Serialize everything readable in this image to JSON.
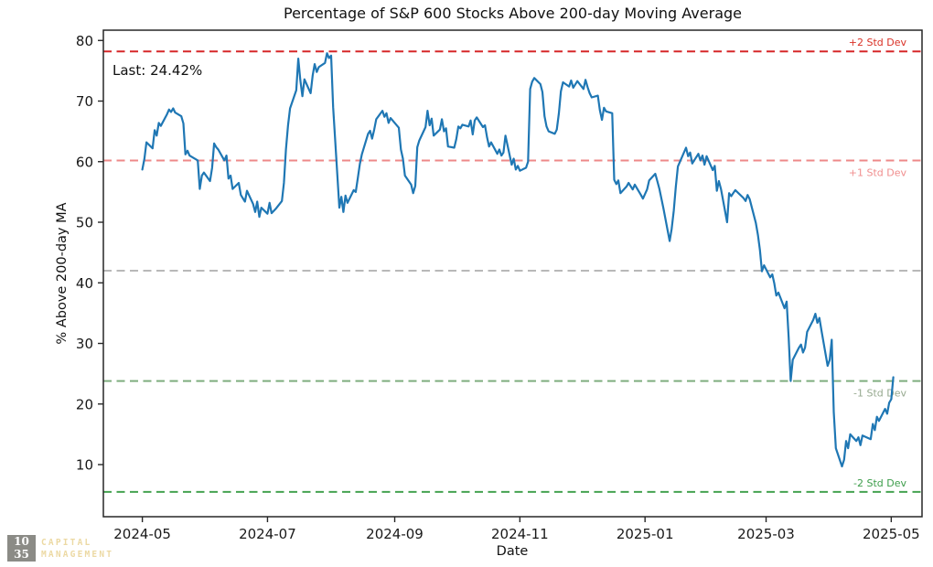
{
  "title": "Percentage of S&P 600 Stocks Above 200-day Moving Average",
  "watermark": {
    "top_number": "10",
    "bottom_number": "35",
    "word1": "CAPITAL",
    "word2": "MANAGEMENT"
  },
  "chart_data": {
    "type": "line",
    "title": "Percentage of S&P 600 Stocks Above 200-day Moving Average",
    "xlabel": "Date",
    "ylabel": "% Above 200-day MA",
    "last_label": "Last: 24.42%",
    "last_value": 24.42,
    "grid": false,
    "legend": "none",
    "line_color": "#1f77b4",
    "axis_color": "#262626",
    "tick_label_color": "#191919",
    "ylim": [
      1.4,
      81.7
    ],
    "xlim_dates": [
      "2024-04-12",
      "2025-05-16"
    ],
    "y_ticks": [
      10,
      20,
      30,
      40,
      50,
      60,
      70,
      80
    ],
    "x_ticks": [
      {
        "label": "2024-05",
        "date": "2024-05-01"
      },
      {
        "label": "2024-07",
        "date": "2024-07-01"
      },
      {
        "label": "2024-09",
        "date": "2024-09-01"
      },
      {
        "label": "2024-11",
        "date": "2024-11-01"
      },
      {
        "label": "2025-01",
        "date": "2025-01-01"
      },
      {
        "label": "2025-03",
        "date": "2025-03-01"
      },
      {
        "label": "2025-05",
        "date": "2025-05-01"
      }
    ],
    "std_lines": [
      {
        "name": "plus-2-std",
        "label": "+2 Std Dev",
        "value": 78.2,
        "color": "#d62728",
        "label_color": "#d93025",
        "label_side": "above"
      },
      {
        "name": "plus-1-std",
        "label": "+1 Std Dev",
        "value": 60.2,
        "color": "#ee8888",
        "label_color": "#f08d8d",
        "label_side": "below"
      },
      {
        "name": "mean",
        "label": "",
        "value": 42.0,
        "color": "#b8b8b8",
        "label_color": "#b8b8b8",
        "label_side": "below"
      },
      {
        "name": "minus-1-std",
        "label": "-1 Std Dev",
        "value": 23.8,
        "color": "#7fae7f",
        "label_color": "#96a98f",
        "label_side": "below"
      },
      {
        "name": "minus-2-std",
        "label": "-2 Std Dev",
        "value": 5.5,
        "color": "#45a250",
        "label_color": "#3c9d4a",
        "label_side": "above"
      }
    ],
    "series": [
      {
        "name": "% of S&P 600 stocks above 200-day MA",
        "points": [
          [
            "2024-05-01",
            58.7
          ],
          [
            "2024-05-02",
            60.5
          ],
          [
            "2024-05-03",
            63.2
          ],
          [
            "2024-05-06",
            62.2
          ],
          [
            "2024-05-07",
            65.2
          ],
          [
            "2024-05-08",
            64.3
          ],
          [
            "2024-05-09",
            66.4
          ],
          [
            "2024-05-10",
            65.9
          ],
          [
            "2024-05-13",
            67.8
          ],
          [
            "2024-05-14",
            68.6
          ],
          [
            "2024-05-15",
            68.2
          ],
          [
            "2024-05-16",
            68.8
          ],
          [
            "2024-05-17",
            68.1
          ],
          [
            "2024-05-20",
            67.5
          ],
          [
            "2024-05-21",
            66.3
          ],
          [
            "2024-05-22",
            61.2
          ],
          [
            "2024-05-23",
            61.8
          ],
          [
            "2024-05-24",
            61.0
          ],
          [
            "2024-05-28",
            60.2
          ],
          [
            "2024-05-29",
            55.5
          ],
          [
            "2024-05-30",
            57.7
          ],
          [
            "2024-05-31",
            58.2
          ],
          [
            "2024-06-03",
            56.8
          ],
          [
            "2024-06-04",
            59.0
          ],
          [
            "2024-06-05",
            63.0
          ],
          [
            "2024-06-06",
            62.4
          ],
          [
            "2024-06-07",
            62.0
          ],
          [
            "2024-06-10",
            60.2
          ],
          [
            "2024-06-11",
            61.0
          ],
          [
            "2024-06-12",
            57.2
          ],
          [
            "2024-06-13",
            57.7
          ],
          [
            "2024-06-14",
            55.5
          ],
          [
            "2024-06-17",
            56.5
          ],
          [
            "2024-06-18",
            54.5
          ],
          [
            "2024-06-20",
            53.4
          ],
          [
            "2024-06-21",
            55.2
          ],
          [
            "2024-06-24",
            53.0
          ],
          [
            "2024-06-25",
            51.7
          ],
          [
            "2024-06-26",
            53.4
          ],
          [
            "2024-06-27",
            50.9
          ],
          [
            "2024-06-28",
            52.4
          ],
          [
            "2024-07-01",
            51.4
          ],
          [
            "2024-07-02",
            53.2
          ],
          [
            "2024-07-03",
            51.5
          ],
          [
            "2024-07-05",
            52.2
          ],
          [
            "2024-07-08",
            53.5
          ],
          [
            "2024-07-09",
            56.5
          ],
          [
            "2024-07-10",
            62.0
          ],
          [
            "2024-07-11",
            66.0
          ],
          [
            "2024-07-12",
            68.8
          ],
          [
            "2024-07-15",
            71.8
          ],
          [
            "2024-07-16",
            77.0
          ],
          [
            "2024-07-17",
            73.5
          ],
          [
            "2024-07-18",
            70.8
          ],
          [
            "2024-07-19",
            73.6
          ],
          [
            "2024-07-22",
            71.3
          ],
          [
            "2024-07-23",
            74.2
          ],
          [
            "2024-07-24",
            76.1
          ],
          [
            "2024-07-25",
            74.8
          ],
          [
            "2024-07-26",
            75.6
          ],
          [
            "2024-07-29",
            76.3
          ],
          [
            "2024-07-30",
            77.9
          ],
          [
            "2024-07-31",
            77.1
          ],
          [
            "2024-08-01",
            77.5
          ],
          [
            "2024-08-02",
            69.0
          ],
          [
            "2024-08-05",
            52.4
          ],
          [
            "2024-08-06",
            54.2
          ],
          [
            "2024-08-07",
            51.7
          ],
          [
            "2024-08-08",
            54.4
          ],
          [
            "2024-08-09",
            53.2
          ],
          [
            "2024-08-12",
            55.3
          ],
          [
            "2024-08-13",
            55.0
          ],
          [
            "2024-08-14",
            57.2
          ],
          [
            "2024-08-15",
            59.6
          ],
          [
            "2024-08-16",
            61.2
          ],
          [
            "2024-08-19",
            64.6
          ],
          [
            "2024-08-20",
            65.1
          ],
          [
            "2024-08-21",
            63.8
          ],
          [
            "2024-08-22",
            65.3
          ],
          [
            "2024-08-23",
            67.0
          ],
          [
            "2024-08-26",
            68.4
          ],
          [
            "2024-08-27",
            67.4
          ],
          [
            "2024-08-28",
            68.0
          ],
          [
            "2024-08-29",
            66.4
          ],
          [
            "2024-08-30",
            67.2
          ],
          [
            "2024-09-03",
            65.6
          ],
          [
            "2024-09-04",
            62.0
          ],
          [
            "2024-09-05",
            60.5
          ],
          [
            "2024-09-06",
            57.7
          ],
          [
            "2024-09-09",
            56.2
          ],
          [
            "2024-09-10",
            54.8
          ],
          [
            "2024-09-11",
            56.0
          ],
          [
            "2024-09-12",
            62.4
          ],
          [
            "2024-09-13",
            63.5
          ],
          [
            "2024-09-16",
            65.7
          ],
          [
            "2024-09-17",
            68.4
          ],
          [
            "2024-09-18",
            66.0
          ],
          [
            "2024-09-19",
            67.1
          ],
          [
            "2024-09-20",
            64.3
          ],
          [
            "2024-09-23",
            65.3
          ],
          [
            "2024-09-24",
            67.0
          ],
          [
            "2024-09-25",
            65.0
          ],
          [
            "2024-09-26",
            65.5
          ],
          [
            "2024-09-27",
            62.5
          ],
          [
            "2024-09-30",
            62.3
          ],
          [
            "2024-10-01",
            63.7
          ],
          [
            "2024-10-02",
            65.8
          ],
          [
            "2024-10-03",
            65.5
          ],
          [
            "2024-10-04",
            66.1
          ],
          [
            "2024-10-07",
            65.8
          ],
          [
            "2024-10-08",
            66.8
          ],
          [
            "2024-10-09",
            64.5
          ],
          [
            "2024-10-10",
            66.8
          ],
          [
            "2024-10-11",
            67.3
          ],
          [
            "2024-10-14",
            65.7
          ],
          [
            "2024-10-15",
            66.0
          ],
          [
            "2024-10-16",
            64.0
          ],
          [
            "2024-10-17",
            62.5
          ],
          [
            "2024-10-18",
            63.2
          ],
          [
            "2024-10-21",
            61.3
          ],
          [
            "2024-10-22",
            62.0
          ],
          [
            "2024-10-23",
            61.0
          ],
          [
            "2024-10-24",
            61.5
          ],
          [
            "2024-10-25",
            64.3
          ],
          [
            "2024-10-28",
            59.5
          ],
          [
            "2024-10-29",
            60.5
          ],
          [
            "2024-10-30",
            58.7
          ],
          [
            "2024-10-31",
            59.3
          ],
          [
            "2024-11-01",
            58.5
          ],
          [
            "2024-11-04",
            59.0
          ],
          [
            "2024-11-05",
            60.0
          ],
          [
            "2024-11-06",
            72.0
          ],
          [
            "2024-11-07",
            73.2
          ],
          [
            "2024-11-08",
            73.8
          ],
          [
            "2024-11-11",
            72.8
          ],
          [
            "2024-11-12",
            71.5
          ],
          [
            "2024-11-13",
            67.5
          ],
          [
            "2024-11-14",
            65.8
          ],
          [
            "2024-11-15",
            65.0
          ],
          [
            "2024-11-18",
            64.6
          ],
          [
            "2024-11-19",
            65.3
          ],
          [
            "2024-11-20",
            68.0
          ],
          [
            "2024-11-21",
            71.6
          ],
          [
            "2024-11-22",
            73.1
          ],
          [
            "2024-11-25",
            72.4
          ],
          [
            "2024-11-26",
            73.4
          ],
          [
            "2024-11-27",
            72.2
          ],
          [
            "2024-11-29",
            73.3
          ],
          [
            "2024-12-02",
            72.0
          ],
          [
            "2024-12-03",
            73.5
          ],
          [
            "2024-12-04",
            72.3
          ],
          [
            "2024-12-05",
            71.3
          ],
          [
            "2024-12-06",
            70.6
          ],
          [
            "2024-12-09",
            70.9
          ],
          [
            "2024-12-10",
            68.5
          ],
          [
            "2024-12-11",
            66.9
          ],
          [
            "2024-12-12",
            68.9
          ],
          [
            "2024-12-13",
            68.3
          ],
          [
            "2024-12-16",
            68.0
          ],
          [
            "2024-12-17",
            57.0
          ],
          [
            "2024-12-18",
            56.3
          ],
          [
            "2024-12-19",
            56.9
          ],
          [
            "2024-12-20",
            54.8
          ],
          [
            "2024-12-23",
            55.9
          ],
          [
            "2024-12-24",
            56.5
          ],
          [
            "2024-12-26",
            55.4
          ],
          [
            "2024-12-27",
            56.2
          ],
          [
            "2024-12-30",
            54.5
          ],
          [
            "2024-12-31",
            53.9
          ],
          [
            "2025-01-02",
            55.4
          ],
          [
            "2025-01-03",
            56.9
          ],
          [
            "2025-01-06",
            58.0
          ],
          [
            "2025-01-07",
            56.8
          ],
          [
            "2025-01-08",
            55.5
          ],
          [
            "2025-01-10",
            52.2
          ],
          [
            "2025-01-13",
            46.9
          ],
          [
            "2025-01-14",
            48.9
          ],
          [
            "2025-01-15",
            51.9
          ],
          [
            "2025-01-16",
            55.8
          ],
          [
            "2025-01-17",
            59.2
          ],
          [
            "2025-01-21",
            62.3
          ],
          [
            "2025-01-22",
            60.9
          ],
          [
            "2025-01-23",
            61.5
          ],
          [
            "2025-01-24",
            59.7
          ],
          [
            "2025-01-27",
            61.3
          ],
          [
            "2025-01-28",
            60.2
          ],
          [
            "2025-01-29",
            61.0
          ],
          [
            "2025-01-30",
            59.5
          ],
          [
            "2025-01-31",
            60.9
          ],
          [
            "2025-02-03",
            58.6
          ],
          [
            "2025-02-04",
            59.3
          ],
          [
            "2025-02-05",
            55.2
          ],
          [
            "2025-02-06",
            56.8
          ],
          [
            "2025-02-07",
            55.5
          ],
          [
            "2025-02-10",
            50.0
          ],
          [
            "2025-02-11",
            54.8
          ],
          [
            "2025-02-12",
            54.3
          ],
          [
            "2025-02-13",
            54.8
          ],
          [
            "2025-02-14",
            55.3
          ],
          [
            "2025-02-18",
            54.0
          ],
          [
            "2025-02-19",
            53.5
          ],
          [
            "2025-02-20",
            54.5
          ],
          [
            "2025-02-21",
            53.8
          ],
          [
            "2025-02-24",
            49.9
          ],
          [
            "2025-02-25",
            47.9
          ],
          [
            "2025-02-26",
            45.4
          ],
          [
            "2025-02-27",
            41.9
          ],
          [
            "2025-02-28",
            42.9
          ],
          [
            "2025-03-03",
            40.9
          ],
          [
            "2025-03-04",
            41.4
          ],
          [
            "2025-03-05",
            39.9
          ],
          [
            "2025-03-06",
            37.9
          ],
          [
            "2025-03-07",
            38.4
          ],
          [
            "2025-03-10",
            35.8
          ],
          [
            "2025-03-11",
            36.9
          ],
          [
            "2025-03-12",
            31.0
          ],
          [
            "2025-03-13",
            23.8
          ],
          [
            "2025-03-14",
            27.3
          ],
          [
            "2025-03-17",
            29.3
          ],
          [
            "2025-03-18",
            29.8
          ],
          [
            "2025-03-19",
            28.5
          ],
          [
            "2025-03-20",
            29.3
          ],
          [
            "2025-03-21",
            31.9
          ],
          [
            "2025-03-24",
            33.9
          ],
          [
            "2025-03-25",
            34.9
          ],
          [
            "2025-03-26",
            33.4
          ],
          [
            "2025-03-27",
            34.2
          ],
          [
            "2025-03-28",
            32.1
          ],
          [
            "2025-03-31",
            26.3
          ],
          [
            "2025-04-01",
            27.3
          ],
          [
            "2025-04-02",
            30.6
          ],
          [
            "2025-04-03",
            18.7
          ],
          [
            "2025-04-04",
            12.7
          ],
          [
            "2025-04-07",
            9.7
          ],
          [
            "2025-04-08",
            10.8
          ],
          [
            "2025-04-09",
            13.9
          ],
          [
            "2025-04-10",
            12.7
          ],
          [
            "2025-04-11",
            15.0
          ],
          [
            "2025-04-14",
            13.9
          ],
          [
            "2025-04-15",
            14.5
          ],
          [
            "2025-04-16",
            13.2
          ],
          [
            "2025-04-17",
            14.8
          ],
          [
            "2025-04-21",
            14.2
          ],
          [
            "2025-04-22",
            16.7
          ],
          [
            "2025-04-23",
            15.7
          ],
          [
            "2025-04-24",
            17.9
          ],
          [
            "2025-04-25",
            17.2
          ],
          [
            "2025-04-28",
            19.2
          ],
          [
            "2025-04-29",
            18.4
          ],
          [
            "2025-04-30",
            20.2
          ],
          [
            "2025-05-01",
            20.8
          ],
          [
            "2025-05-02",
            24.42
          ]
        ]
      }
    ]
  }
}
